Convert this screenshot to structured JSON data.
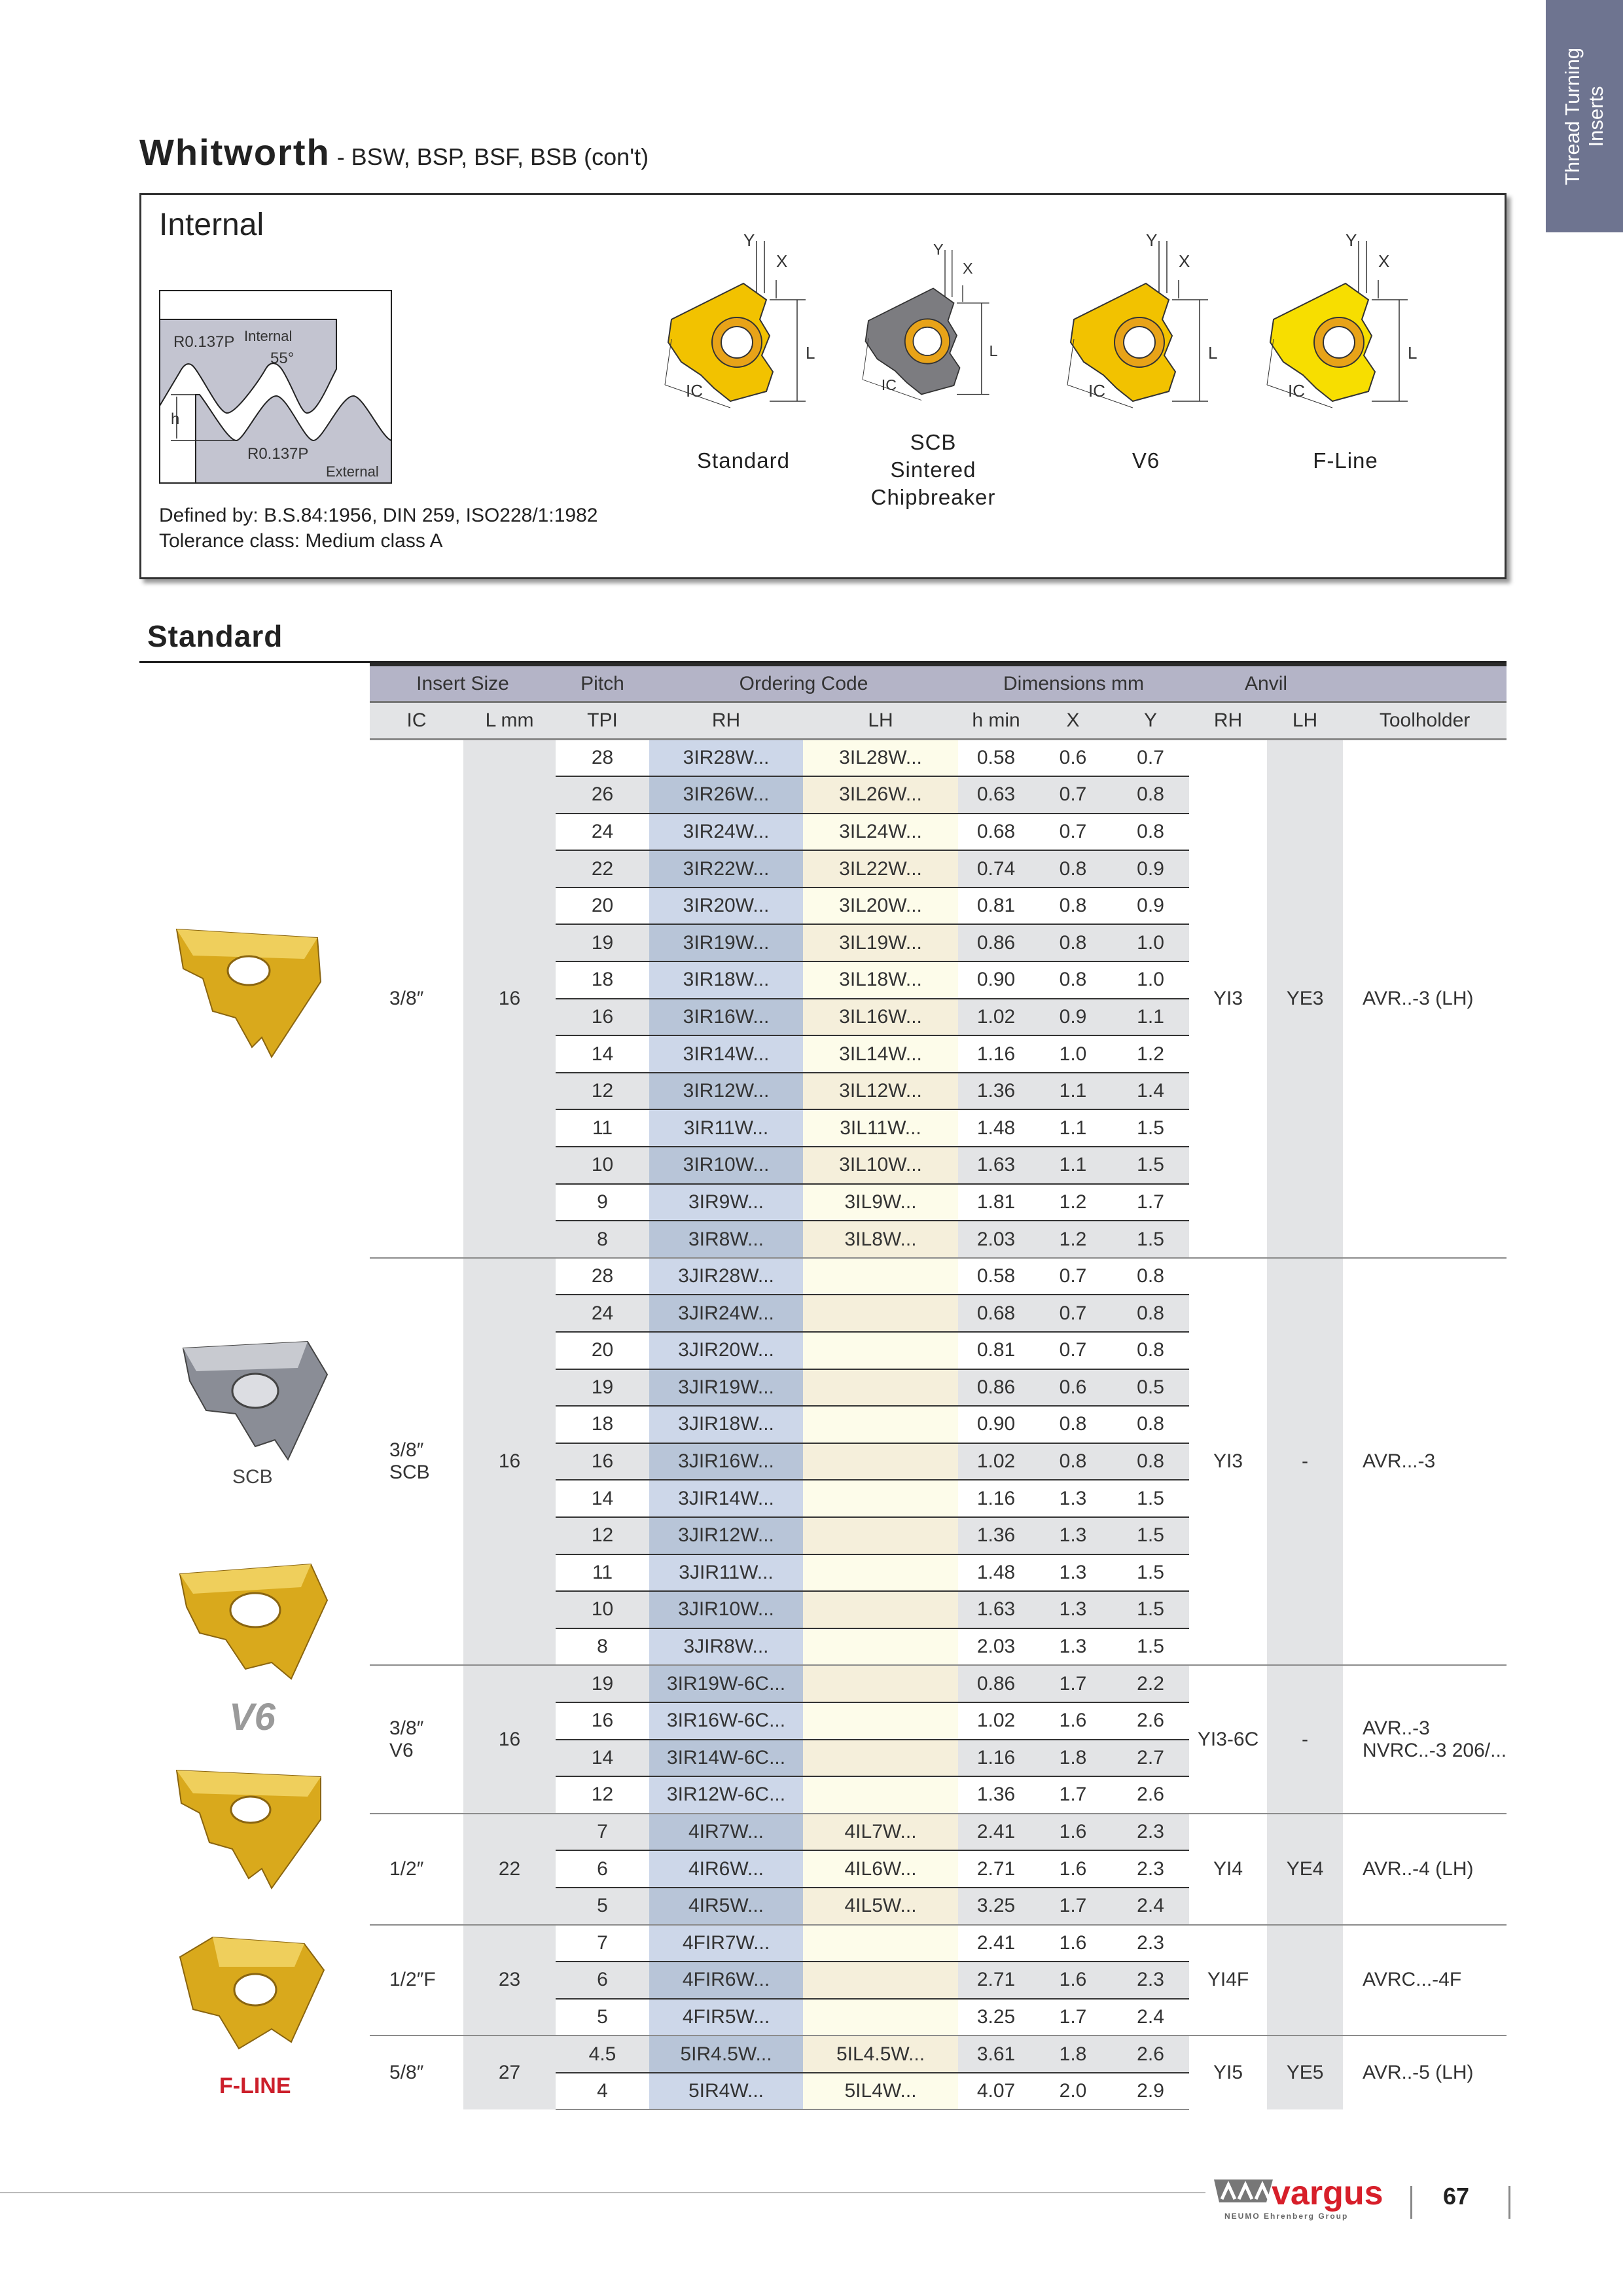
{
  "side_tab": {
    "line1": "Thread Turning",
    "line2": "Inserts"
  },
  "header": {
    "title": "Whitworth",
    "subtitle": "- BSW, BSP, BSF, BSB (con't)"
  },
  "info_box": {
    "heading": "Internal",
    "profile": {
      "r_internal": "R0.137P",
      "internal": "Internal",
      "angle": "55°",
      "h": "h",
      "r_external": "R0.137P",
      "external": "External"
    },
    "defined_by": "Defined by: B.S.84:1956, DIN 259, ISO228/1:1982",
    "tolerance": "Tolerance class: Medium class A",
    "inserts": [
      {
        "lines": [
          "Standard"
        ],
        "color": "#f2c200",
        "dims": {
          "y": "Y",
          "x": "X",
          "l": "L",
          "ic": "IC"
        }
      },
      {
        "lines": [
          "SCB",
          "Sintered",
          "Chipbreaker"
        ],
        "color": "#7c7c80",
        "dims": {
          "y": "Y",
          "x": "X",
          "l": "L",
          "ic": "IC"
        }
      },
      {
        "lines": [
          "V6"
        ],
        "color": "#f2c200",
        "dims": {
          "y": "Y",
          "x": "X",
          "l": "L",
          "ic": "IC"
        }
      },
      {
        "lines": [
          "F-Line"
        ],
        "color": "#f7de00",
        "dims": {
          "y": "Y",
          "x": "X",
          "l": "L",
          "ic": "IC"
        }
      }
    ]
  },
  "section_title": "Standard",
  "table": {
    "header_groups": {
      "insert_size": "Insert Size",
      "pitch": "Pitch",
      "ordering_code": "Ordering Code",
      "dimensions": "Dimensions mm",
      "anvil": "Anvil"
    },
    "columns": {
      "ic": "IC",
      "l": "L mm",
      "tpi": "TPI",
      "rh": "RH",
      "lh": "LH",
      "hmin": "h min",
      "x": "X",
      "y": "Y",
      "anvil_rh": "RH",
      "anvil_lh": "LH",
      "toolholder": "Toolholder"
    },
    "groups": [
      {
        "ic": [
          "3/8″"
        ],
        "l": "16",
        "anvil_rh": "YI3",
        "anvil_lh": "YE3",
        "toolholder": [
          "AVR..-3 (LH)"
        ],
        "rows": [
          [
            "28",
            "3IR28W...",
            "3IL28W...",
            "0.58",
            "0.6",
            "0.7"
          ],
          [
            "26",
            "3IR26W...",
            "3IL26W...",
            "0.63",
            "0.7",
            "0.8"
          ],
          [
            "24",
            "3IR24W...",
            "3IL24W...",
            "0.68",
            "0.7",
            "0.8"
          ],
          [
            "22",
            "3IR22W...",
            "3IL22W...",
            "0.74",
            "0.8",
            "0.9"
          ],
          [
            "20",
            "3IR20W...",
            "3IL20W...",
            "0.81",
            "0.8",
            "0.9"
          ],
          [
            "19",
            "3IR19W...",
            "3IL19W...",
            "0.86",
            "0.8",
            "1.0"
          ],
          [
            "18",
            "3IR18W...",
            "3IL18W...",
            "0.90",
            "0.8",
            "1.0"
          ],
          [
            "16",
            "3IR16W...",
            "3IL16W...",
            "1.02",
            "0.9",
            "1.1"
          ],
          [
            "14",
            "3IR14W...",
            "3IL14W...",
            "1.16",
            "1.0",
            "1.2"
          ],
          [
            "12",
            "3IR12W...",
            "3IL12W...",
            "1.36",
            "1.1",
            "1.4"
          ],
          [
            "11",
            "3IR11W...",
            "3IL11W...",
            "1.48",
            "1.1",
            "1.5"
          ],
          [
            "10",
            "3IR10W...",
            "3IL10W...",
            "1.63",
            "1.1",
            "1.5"
          ],
          [
            "9",
            "3IR9W...",
            "3IL9W...",
            "1.81",
            "1.2",
            "1.7"
          ],
          [
            "8",
            "3IR8W...",
            "3IL8W...",
            "2.03",
            "1.2",
            "1.5"
          ]
        ]
      },
      {
        "ic": [
          "3/8″",
          "SCB"
        ],
        "l": "16",
        "anvil_rh": "YI3",
        "anvil_lh": "-",
        "toolholder": [
          "AVR...-3"
        ],
        "rows": [
          [
            "28",
            "3JIR28W...",
            "",
            "0.58",
            "0.7",
            "0.8"
          ],
          [
            "24",
            "3JIR24W...",
            "",
            "0.68",
            "0.7",
            "0.8"
          ],
          [
            "20",
            "3JIR20W...",
            "",
            "0.81",
            "0.7",
            "0.8"
          ],
          [
            "19",
            "3JIR19W...",
            "",
            "0.86",
            "0.6",
            "0.5"
          ],
          [
            "18",
            "3JIR18W...",
            "",
            "0.90",
            "0.8",
            "0.8"
          ],
          [
            "16",
            "3JIR16W...",
            "",
            "1.02",
            "0.8",
            "0.8"
          ],
          [
            "14",
            "3JIR14W...",
            "",
            "1.16",
            "1.3",
            "1.5"
          ],
          [
            "12",
            "3JIR12W...",
            "",
            "1.36",
            "1.3",
            "1.5"
          ],
          [
            "11",
            "3JIR11W...",
            "",
            "1.48",
            "1.3",
            "1.5"
          ],
          [
            "10",
            "3JIR10W...",
            "",
            "1.63",
            "1.3",
            "1.5"
          ],
          [
            "8",
            "3JIR8W...",
            "",
            "2.03",
            "1.3",
            "1.5"
          ]
        ]
      },
      {
        "ic": [
          "3/8″",
          "V6"
        ],
        "l": "16",
        "anvil_rh": "YI3-6C",
        "anvil_lh": "-",
        "toolholder": [
          "AVR..-3",
          "NVRC..-3 206/..."
        ],
        "rows": [
          [
            "19",
            "3IR19W-6C...",
            "",
            "0.86",
            "1.7",
            "2.2"
          ],
          [
            "16",
            "3IR16W-6C...",
            "",
            "1.02",
            "1.6",
            "2.6"
          ],
          [
            "14",
            "3IR14W-6C...",
            "",
            "1.16",
            "1.8",
            "2.7"
          ],
          [
            "12",
            "3IR12W-6C...",
            "",
            "1.36",
            "1.7",
            "2.6"
          ]
        ]
      },
      {
        "ic": [
          "1/2″"
        ],
        "l": "22",
        "anvil_rh": "YI4",
        "anvil_lh": "YE4",
        "toolholder": [
          "AVR..-4 (LH)"
        ],
        "rows": [
          [
            "7",
            "4IR7W...",
            "4IL7W...",
            "2.41",
            "1.6",
            "2.3"
          ],
          [
            "6",
            "4IR6W...",
            "4IL6W...",
            "2.71",
            "1.6",
            "2.3"
          ],
          [
            "5",
            "4IR5W...",
            "4IL5W...",
            "3.25",
            "1.7",
            "2.4"
          ]
        ]
      },
      {
        "ic": [
          "1/2″F"
        ],
        "l": "23",
        "anvil_rh": "YI4F",
        "anvil_lh": "",
        "toolholder": [
          "AVRC...-4F"
        ],
        "rows": [
          [
            "7",
            "4FIR7W...",
            "",
            "2.41",
            "1.6",
            "2.3"
          ],
          [
            "6",
            "4FIR6W...",
            "",
            "2.71",
            "1.6",
            "2.3"
          ],
          [
            "5",
            "4FIR5W...",
            "",
            "3.25",
            "1.7",
            "2.4"
          ]
        ]
      },
      {
        "ic": [
          "5/8″"
        ],
        "l": "27",
        "anvil_rh": "YI5",
        "anvil_lh": "YE5",
        "toolholder": [
          "AVR..-5 (LH)"
        ],
        "rows": [
          [
            "4.5",
            "5IR4.5W...",
            "5IL4.5W...",
            "3.61",
            "1.8",
            "2.6"
          ],
          [
            "4",
            "5IR4W...",
            "5IL4W...",
            "4.07",
            "2.0",
            "2.9"
          ]
        ]
      }
    ]
  },
  "side_images": {
    "scb_label": "SCB",
    "v6_logo": "V6",
    "fline_logo": "F-LINE"
  },
  "footer": {
    "brand": "vargus",
    "brand_tagline": "NEUMO Ehrenberg Group",
    "page_number": "67",
    "brand_color": "#d71f2a"
  }
}
